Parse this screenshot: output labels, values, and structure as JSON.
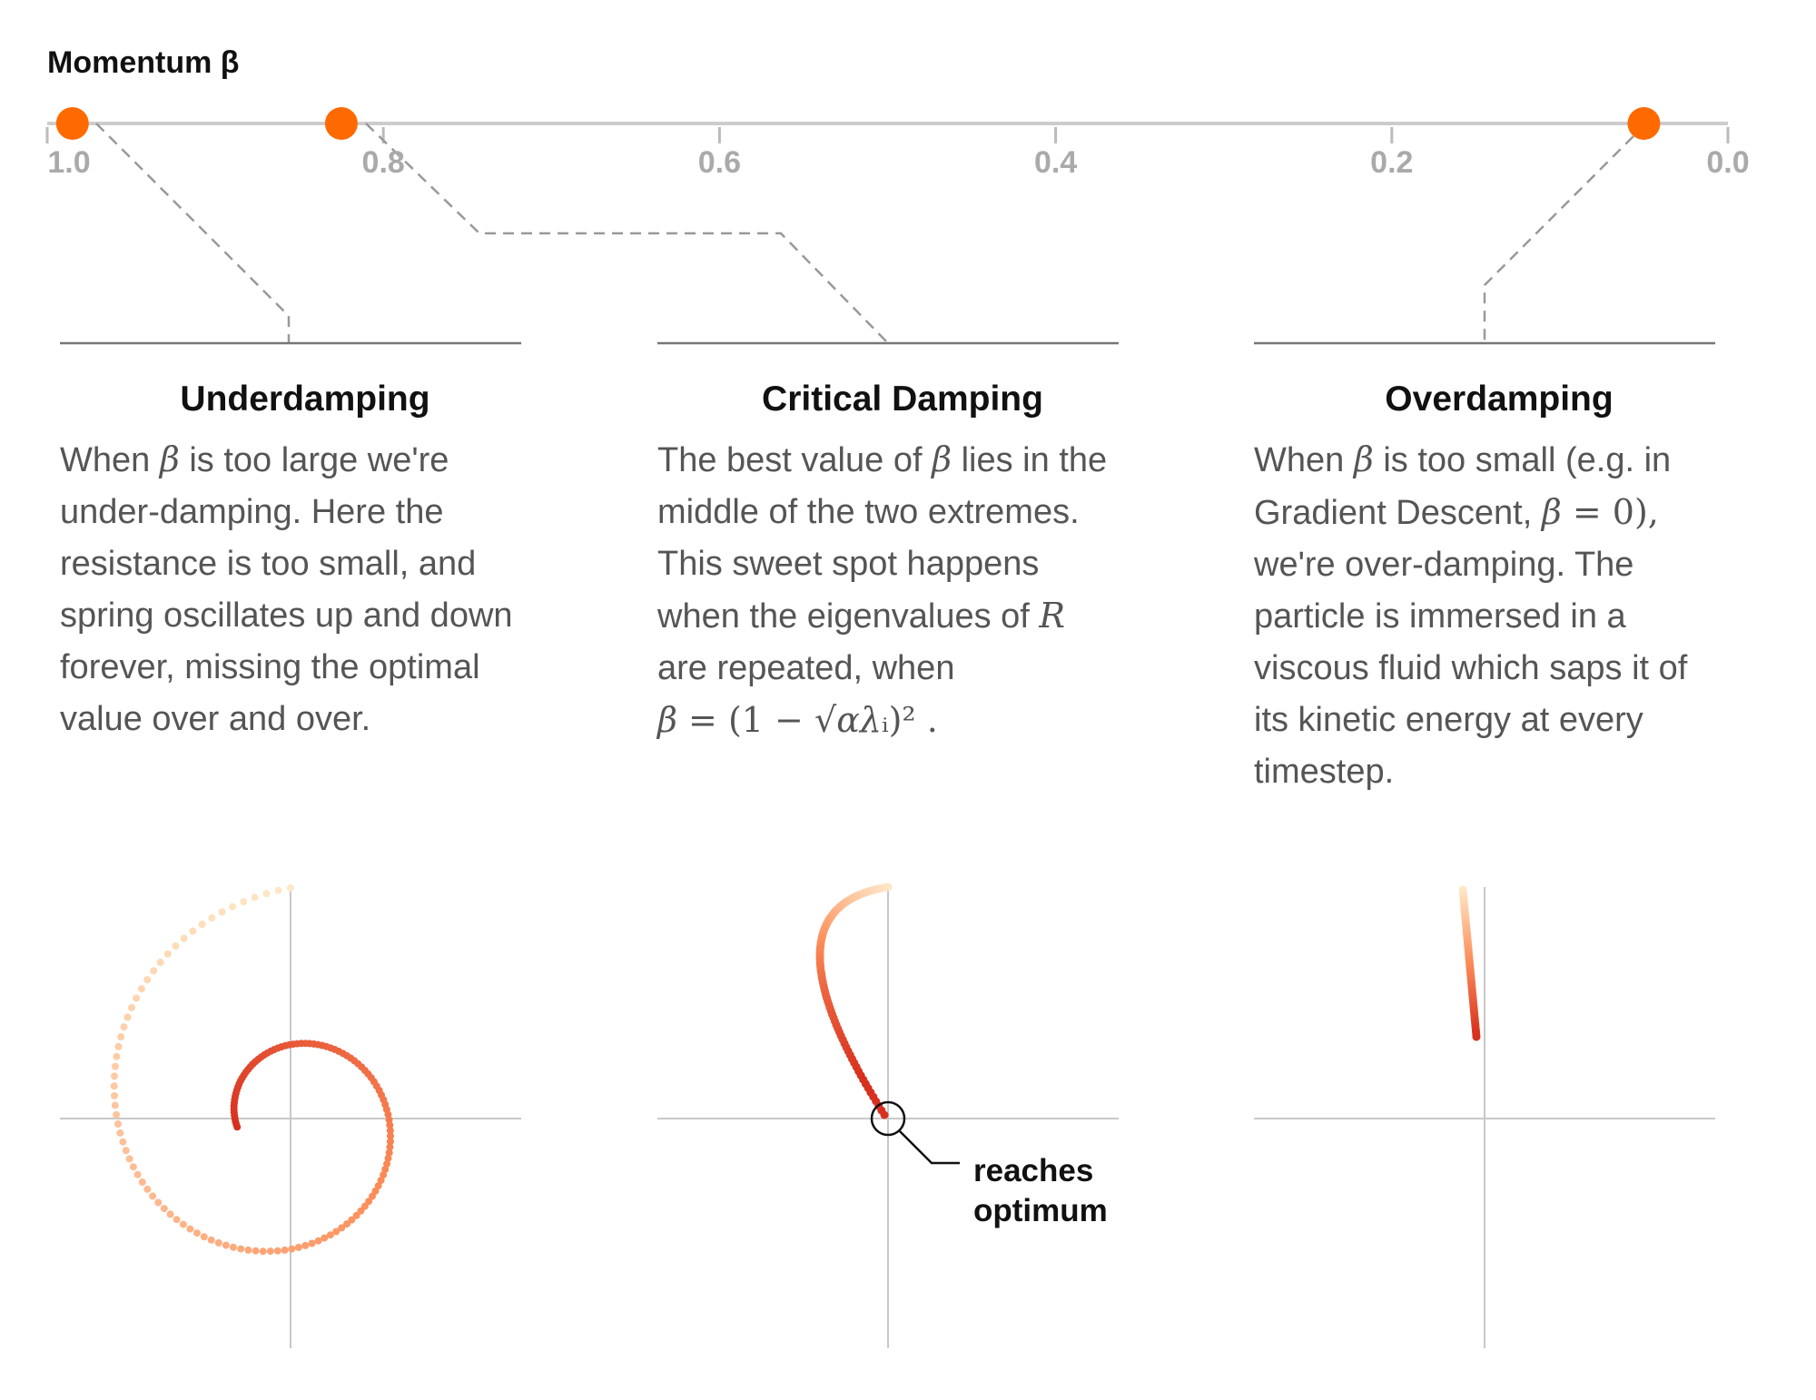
{
  "slider": {
    "title": "Momentum β",
    "ticks": [
      "1.0",
      "0.8",
      "0.6",
      "0.4",
      "0.2",
      "0.0"
    ],
    "handles": [
      0.985,
      0.825,
      0.05
    ],
    "handle_color": "#ff6a00"
  },
  "columns": [
    {
      "title": "Underdamping",
      "lines": [
        [
          {
            "t": "When "
          },
          {
            "m": "β"
          },
          {
            "t": " is too large we're"
          }
        ],
        [
          {
            "t": "under-damping. Here the"
          }
        ],
        [
          {
            "t": "resistance is too small, and"
          }
        ],
        [
          {
            "t": "spring oscillates up and down"
          }
        ],
        [
          {
            "t": "forever, missing the optimal"
          }
        ],
        [
          {
            "t": "value over and over."
          }
        ]
      ]
    },
    {
      "title": "Critical Damping",
      "lines": [
        [
          {
            "t": "The best value of "
          },
          {
            "m": "β"
          },
          {
            "t": " lies in the"
          }
        ],
        [
          {
            "t": "middle of the two extremes."
          }
        ],
        [
          {
            "t": "This sweet spot happens"
          }
        ],
        [
          {
            "t": "when the eigenvalues of "
          },
          {
            "m": "R"
          }
        ],
        [
          {
            "t": "are repeated, when"
          }
        ],
        [
          {
            "m": "β"
          },
          {
            "r": " = (1 − √"
          },
          {
            "m": "αλ"
          },
          {
            "r": "ᵢ)² ."
          }
        ]
      ]
    },
    {
      "title": "Overdamping",
      "lines": [
        [
          {
            "t": "When "
          },
          {
            "m": "β"
          },
          {
            "t": " is too small (e.g. in"
          }
        ],
        [
          {
            "t": "Gradient Descent, "
          },
          {
            "m": "β"
          },
          {
            "r": " = 0),"
          }
        ],
        [
          {
            "t": "we're over-damping. The"
          }
        ],
        [
          {
            "t": "particle is immersed in a"
          }
        ],
        [
          {
            "t": "viscous fluid which saps it of"
          }
        ],
        [
          {
            "t": "its kinetic energy at every"
          }
        ],
        [
          {
            "t": "timestep."
          }
        ]
      ]
    }
  ],
  "annotation": {
    "line1": "reaches",
    "line2": "optimum"
  },
  "colors": {
    "light_orange": "#fee8c8",
    "mid_orange": "#fc8d59",
    "dark_red": "#d7301f"
  }
}
